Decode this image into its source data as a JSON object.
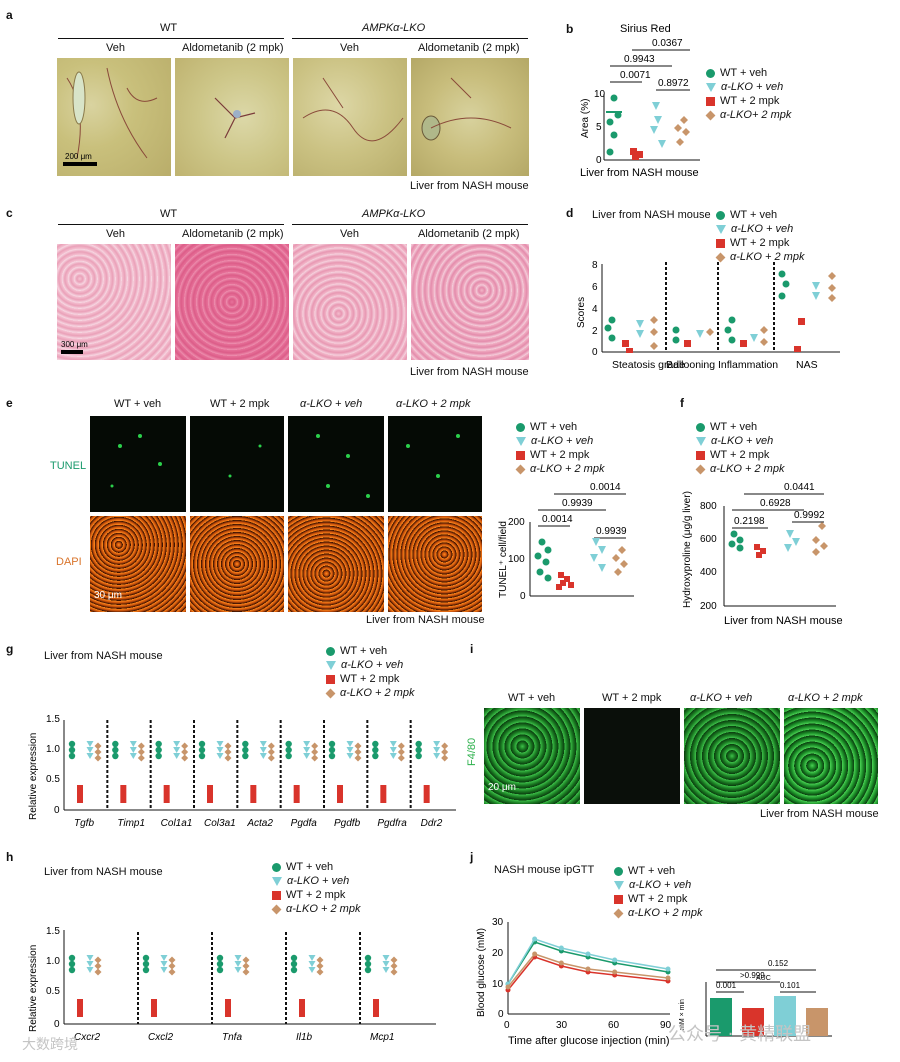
{
  "panels": {
    "a": {
      "letter": "a",
      "group_wt": "WT",
      "group_lko": "AMPKα-LKO",
      "veh": "Veh",
      "drug": "Aldometanib (2 mpk)",
      "scale": "200 μm",
      "caption": "Liver from NASH mouse"
    },
    "b": {
      "letter": "b",
      "title": "Sirius Red",
      "ylabel": "Area (%)",
      "xlabel": "Liver from NASH mouse",
      "pvals": [
        "0.0367",
        "0.9943",
        "0.0071",
        "0.8972"
      ]
    },
    "c": {
      "letter": "c",
      "group_wt": "WT",
      "group_lko": "AMPKα-LKO",
      "veh": "Veh",
      "drug": "Aldometanib (2 mpk)",
      "scale": "300 μm",
      "caption": "Liver from NASH mouse"
    },
    "d": {
      "letter": "d",
      "title": "Liver from NASH mouse",
      "ylabel": "Scores",
      "categories": [
        "Steatosis grade",
        "Ballooning",
        "Inflammation",
        "NAS"
      ]
    },
    "e": {
      "letter": "e",
      "cols": [
        "WT + veh",
        "WT + 2 mpk",
        "α-LKO + veh",
        "α-LKO + 2 mpk"
      ],
      "row1": "TUNEL",
      "row2": "DAPI",
      "scale": "30 μm",
      "caption": "Liver from NASH mouse",
      "ylabel": "TUNEL⁺ cell/field",
      "pvals": [
        "0.0014",
        "0.9939",
        "0.0014",
        "0.9939"
      ]
    },
    "f": {
      "letter": "f",
      "ylabel": "Hydroxyproline (μg/g liver)",
      "xlabel": "Liver from NASH mouse",
      "pvals": [
        "0.0441",
        "0.6928",
        "0.2198",
        "0.9992"
      ]
    },
    "g": {
      "letter": "g",
      "title": "Liver from NASH mouse",
      "ylabel": "Relative expression",
      "genes": [
        "Tgfb",
        "Timp1",
        "Col1a1",
        "Col3a1",
        "Acta2",
        "Pgdfa",
        "Pgdfb",
        "Pgdfra",
        "Ddr2"
      ]
    },
    "h": {
      "letter": "h",
      "title": "Liver from NASH mouse",
      "ylabel": "Relative expression",
      "genes": [
        "Cxcr2",
        "Cxcl2",
        "Tnfa",
        "Il1b",
        "Mcp1"
      ]
    },
    "i": {
      "letter": "i",
      "cols": [
        "WT + veh",
        "WT + 2 mpk",
        "α-LKO + veh",
        "α-LKO + 2 mpk"
      ],
      "row": "F4/80",
      "scale": "20 μm",
      "caption": "Liver from NASH mouse"
    },
    "j": {
      "letter": "j",
      "title": "NASH mouse ipGTT",
      "ylabel": "Blood glucose (mM)",
      "xlabel": "Time after glucose injection (min)",
      "auc": "AUC",
      "auc_ylabel": "mM × min",
      "auc_pvals": [
        "0.152",
        ">0.999",
        "0.001",
        "0.101"
      ]
    }
  },
  "legend": {
    "wt_veh": "WT + veh",
    "lko_veh": "α-LKO + veh",
    "wt_drug": "WT + 2 mpk",
    "lko_drug": "α-LKO + 2 mpk",
    "lko_drug_b": "α-LKO+ 2 mpk"
  },
  "watermark": {
    "text1": "公众号 · 黄精联盟",
    "text2": "大数跨境"
  },
  "colors": {
    "wt_veh": "#1a9a6c",
    "lko_veh": "#7fcfd6",
    "wt_drug": "#d9342b",
    "lko_drug": "#c8956a"
  },
  "chart_data": [
    {
      "type": "scatter",
      "title": "Sirius Red",
      "ylabel": "Area (%)",
      "ylim": [
        0,
        10
      ],
      "categories": [
        "WT + veh",
        "α-LKO + veh",
        "WT + 2 mpk",
        "α-LKO+ 2 mpk"
      ],
      "means": [
        7.5,
        1.3,
        7.2,
        6.0
      ]
    },
    {
      "type": "scatter",
      "ylabel": "Scores",
      "ylim": [
        0,
        8
      ],
      "categories": [
        "Steatosis grade",
        "Ballooning",
        "Inflammation",
        "NAS"
      ]
    },
    {
      "type": "scatter",
      "ylabel": "TUNEL⁺ cell/field",
      "ylim": [
        0,
        200
      ],
      "means": [
        100,
        55,
        115,
        105
      ]
    },
    {
      "type": "scatter",
      "ylabel": "Hydroxyproline (μg/g liver)",
      "ylim": [
        200,
        800
      ],
      "means": [
        560,
        500,
        580,
        590
      ]
    },
    {
      "type": "line",
      "title": "NASH mouse ipGTT",
      "x": [
        0,
        15,
        30,
        45,
        60,
        90
      ],
      "ylim": [
        0,
        30
      ],
      "series": [
        {
          "name": "WT + veh",
          "values": [
            10,
            24,
            21,
            19,
            17,
            14
          ]
        },
        {
          "name": "α-LKO + veh",
          "values": [
            10,
            25,
            22,
            20,
            18,
            15
          ]
        },
        {
          "name": "WT + 2 mpk",
          "values": [
            8,
            19,
            16,
            14,
            13,
            11
          ]
        },
        {
          "name": "α-LKO + 2 mpk",
          "values": [
            9,
            20,
            17,
            15,
            14,
            12
          ]
        }
      ]
    }
  ]
}
